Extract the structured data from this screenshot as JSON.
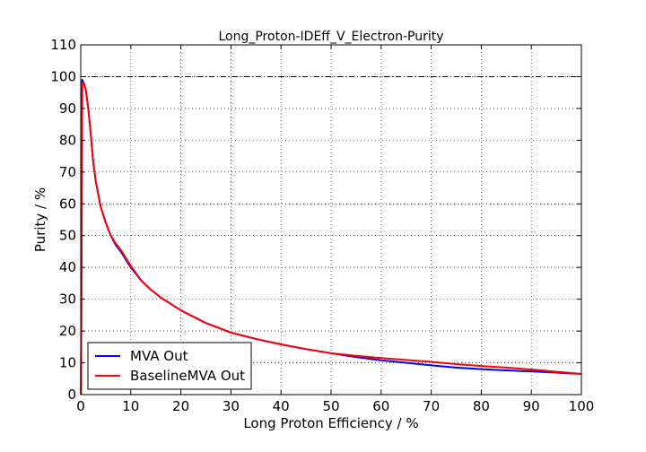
{
  "chart_data": {
    "type": "line",
    "title": "Long_Proton-IDEff_V_Electron-Purity",
    "xlabel": "Long Proton Efficiency / %",
    "ylabel": "Purity / %",
    "xlim": [
      0,
      100
    ],
    "ylim": [
      0,
      110
    ],
    "xticks": [
      "0",
      "10",
      "20",
      "30",
      "40",
      "50",
      "60",
      "70",
      "80",
      "90",
      "100"
    ],
    "yticks": [
      "0",
      "10",
      "20",
      "30",
      "40",
      "50",
      "60",
      "70",
      "80",
      "90",
      "100",
      "110"
    ],
    "grid": true,
    "reference_line": {
      "y": 100,
      "style": "dash-dot"
    },
    "legend": {
      "position": "lower-left"
    },
    "series": [
      {
        "name": "MVA Out",
        "color": "#0000ff",
        "x": [
          0.05,
          0.3,
          0.6,
          1.0,
          1.5,
          2.0,
          2.5,
          3.0,
          4.0,
          5.0,
          6.0,
          7.0,
          8.0,
          9.0,
          10.0,
          12.0,
          14.0,
          16.0,
          18.0,
          20.0,
          25.0,
          30.0,
          35.0,
          40.0,
          45.0,
          50.0,
          55.0,
          60.0,
          65.0,
          70.0,
          75.0,
          80.0,
          85.0,
          90.0,
          95.0,
          100.0
        ],
        "y": [
          0,
          99,
          98,
          96,
          90,
          82,
          73,
          67,
          59,
          54,
          50,
          47,
          45,
          42.5,
          40,
          36,
          33,
          30.5,
          28.5,
          26.5,
          22.5,
          19.5,
          17.5,
          15.8,
          14.3,
          13.0,
          11.8,
          10.8,
          10.0,
          9.2,
          8.5,
          8.0,
          7.6,
          7.3,
          6.9,
          6.5
        ]
      },
      {
        "name": "BaselineMVA Out",
        "color": "#ff0000",
        "x": [
          0.05,
          0.3,
          0.6,
          1.0,
          1.5,
          2.0,
          2.5,
          3.0,
          4.0,
          5.0,
          6.0,
          7.0,
          8.0,
          9.0,
          10.0,
          12.0,
          14.0,
          16.0,
          18.0,
          20.0,
          25.0,
          30.0,
          35.0,
          40.0,
          45.0,
          50.0,
          55.0,
          60.0,
          65.0,
          70.0,
          75.0,
          80.0,
          85.0,
          90.0,
          95.0,
          100.0
        ],
        "y": [
          0,
          98,
          98,
          96,
          90,
          82,
          73,
          67,
          59,
          54,
          50,
          47.5,
          45.5,
          43,
          40.5,
          36,
          33,
          30.5,
          28.5,
          26.5,
          22.5,
          19.5,
          17.5,
          15.8,
          14.3,
          13.0,
          12.2,
          11.5,
          10.9,
          10.3,
          9.6,
          9.0,
          8.5,
          7.9,
          7.2,
          6.5
        ]
      }
    ]
  }
}
